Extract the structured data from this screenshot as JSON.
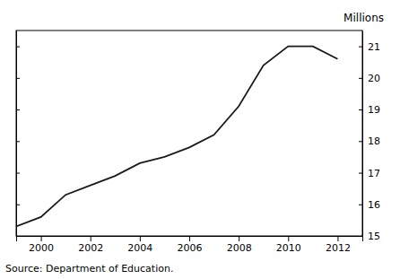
{
  "chart_data": {
    "type": "line",
    "x": [
      1999,
      2000,
      2001,
      2002,
      2003,
      2004,
      2005,
      2006,
      2007,
      2008,
      2009,
      2010,
      2011,
      2012
    ],
    "values": [
      15.3,
      15.6,
      16.3,
      16.6,
      16.9,
      17.3,
      17.5,
      17.8,
      18.2,
      19.1,
      20.4,
      21.0,
      21.0,
      20.6
    ],
    "color": "#1a1a1a",
    "xlim": [
      1999,
      2013
    ],
    "ylim": [
      15,
      21.5
    ],
    "xticks": [
      2000,
      2002,
      2004,
      2006,
      2008,
      2010,
      2012
    ],
    "yticks": [
      15,
      16,
      17,
      18,
      19,
      20,
      21
    ],
    "ylabel": "Millions",
    "annotations": [
      "Source: Department of Education."
    ],
    "grid": false
  }
}
